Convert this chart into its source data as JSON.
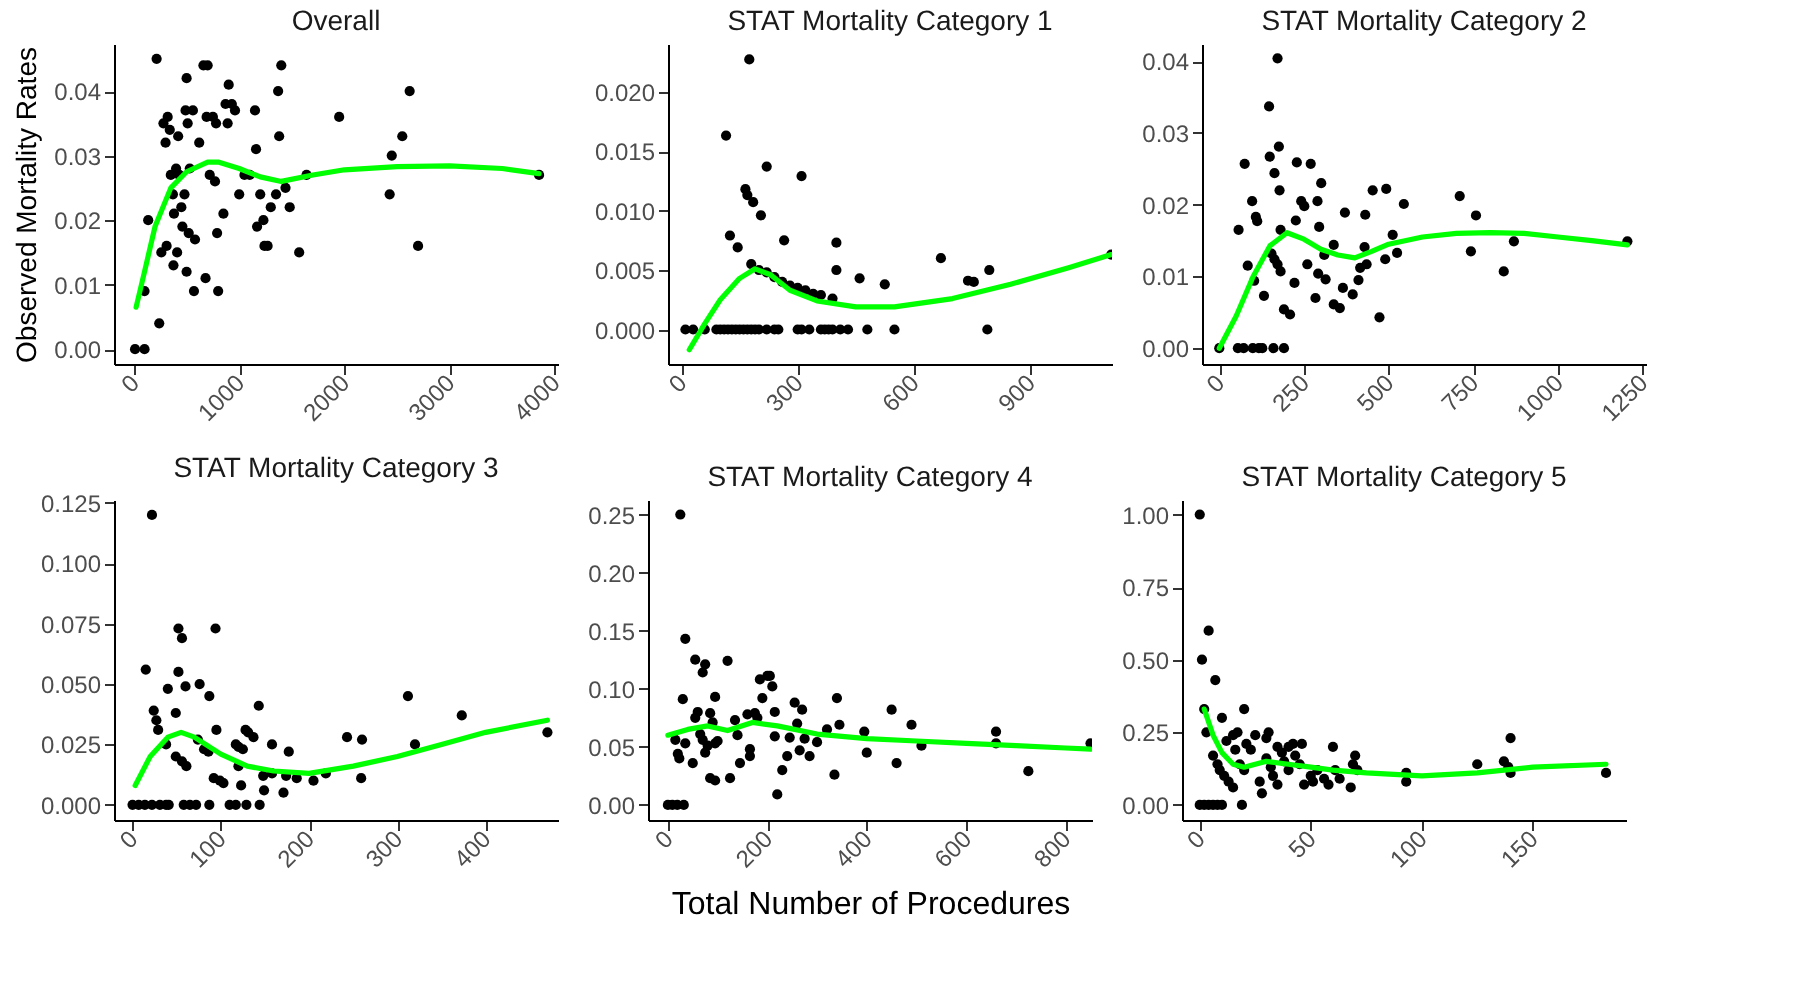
{
  "chart_data": [
    {
      "type": "scatter",
      "title": "Overall",
      "ylabel": "Observed Mortality Rates",
      "xlim": [
        -190,
        4030
      ],
      "ylim": [
        -0.0023,
        0.0473
      ],
      "xticks": [
        0,
        1000,
        2000,
        3000,
        4000
      ],
      "yticks": [
        {
          "value": 0,
          "label": "0.00"
        },
        0.01,
        0.02,
        0.03,
        0.04
      ],
      "grid": false,
      "series": [
        {
          "type": "scatter",
          "marker": "circle",
          "color": "#000000",
          "x": [
            10,
            100,
            100,
            135,
            215,
            240,
            260,
            280,
            300,
            310,
            320,
            340,
            350,
            370,
            375,
            380,
            400,
            410,
            420,
            430,
            450,
            460,
            480,
            490,
            500,
            500,
            510,
            520,
            530,
            560,
            570,
            580,
            620,
            660,
            680,
            690,
            700,
            720,
            750,
            770,
            780,
            790,
            800,
            850,
            870,
            890,
            900,
            930,
            960,
            1000,
            1050,
            1100,
            1150,
            1160,
            1170,
            1200,
            1230,
            1240,
            1270,
            1300,
            1350,
            1370,
            1380,
            1400,
            1440,
            1480,
            1570,
            1640,
            1950,
            2430,
            2450,
            2550,
            2620,
            2700,
            3850
          ],
          "values": [
            0,
            0,
            0.009,
            0.02,
            0.045,
            0.004,
            0.015,
            0.035,
            0.032,
            0.016,
            0.036,
            0.034,
            0.027,
            0.024,
            0.013,
            0.021,
            0.028,
            0.015,
            0.033,
            0.027,
            0.022,
            0.019,
            0.024,
            0.037,
            0.012,
            0.042,
            0.035,
            0.018,
            0.028,
            0.037,
            0.009,
            0.017,
            0.032,
            0.044,
            0.011,
            0.036,
            0.044,
            0.027,
            0.036,
            0.026,
            0.035,
            0.018,
            0.009,
            0.021,
            0.038,
            0.035,
            0.041,
            0.038,
            0.037,
            0.024,
            0.027,
            0.027,
            0.037,
            0.031,
            0.019,
            0.024,
            0.02,
            0.016,
            0.016,
            0.022,
            0.024,
            0.04,
            0.033,
            0.044,
            0.025,
            0.022,
            0.015,
            0.027,
            0.036,
            0.024,
            0.03,
            0.033,
            0.04,
            0.016,
            0.027
          ]
        },
        {
          "type": "line",
          "color": "#00ff00",
          "x": [
            20,
            100,
            200,
            350,
            500,
            700,
            800,
            1000,
            1200,
            1400,
            1700,
            2000,
            2500,
            3000,
            3500,
            3850
          ],
          "values": [
            0.0065,
            0.012,
            0.019,
            0.025,
            0.0275,
            0.029,
            0.029,
            0.028,
            0.0267,
            0.026,
            0.027,
            0.0278,
            0.0283,
            0.0284,
            0.028,
            0.0272
          ]
        }
      ]
    },
    {
      "type": "scatter",
      "title": "STAT Mortality Category 1",
      "xlim": [
        -35,
        1112
      ],
      "ylim": [
        -0.0029,
        0.024
      ],
      "xticks": [
        0,
        300,
        600,
        900
      ],
      "yticks": [
        {
          "value": 0,
          "label": "0.000"
        },
        0.005,
        {
          "value": 0.01,
          "label": "0.010"
        },
        0.015,
        {
          "value": 0.02,
          "label": "0.020"
        }
      ],
      "grid": false,
      "series": [
        {
          "type": "scatter",
          "marker": "circle",
          "color": "#000000",
          "x": [
            10,
            30,
            60,
            90,
            100,
            110,
            120,
            130,
            140,
            150,
            160,
            170,
            180,
            190,
            200,
            220,
            240,
            250,
            300,
            310,
            330,
            360,
            370,
            380,
            390,
            410,
            430,
            480,
            550,
            790,
            175,
            115,
            220,
            310,
            165,
            170,
            185,
            205,
            125,
            145,
            265,
            400,
            180,
            200,
            220,
            240,
            260,
            280,
            300,
            320,
            340,
            360,
            390,
            400,
            460,
            525,
            670,
            740,
            755,
            795,
            1110
          ],
          "values": [
            0,
            0,
            0,
            0,
            0,
            0,
            0,
            0,
            0,
            0,
            0,
            0,
            0,
            0,
            0,
            0,
            0,
            0,
            0,
            0,
            0,
            0,
            0,
            0,
            0,
            0,
            0,
            0,
            0,
            0,
            0.0227,
            0.0163,
            0.0137,
            0.0129,
            0.0118,
            0.0113,
            0.0107,
            0.0096,
            0.0079,
            0.0069,
            0.0075,
            0.0073,
            0.0055,
            0.005,
            0.0048,
            0.0044,
            0.004,
            0.0037,
            0.0035,
            0.0033,
            0.003,
            0.0029,
            0.0026,
            0.005,
            0.0043,
            0.0038,
            0.006,
            0.0041,
            0.004,
            0.005,
            0.0063
          ]
        },
        {
          "type": "line",
          "color": "#00ff00",
          "x": [
            20,
            60,
            100,
            150,
            190,
            230,
            280,
            350,
            450,
            550,
            700,
            850,
            1000,
            1110
          ],
          "values": [
            -0.0017,
            0.0005,
            0.0025,
            0.0043,
            0.0051,
            0.0046,
            0.0033,
            0.0024,
            0.0019,
            0.0019,
            0.0026,
            0.0038,
            0.0052,
            0.0063
          ]
        }
      ]
    },
    {
      "type": "scatter",
      "title": "STAT Mortality Category 2",
      "xlim": [
        -51,
        1260
      ],
      "ylim": [
        -0.0022,
        0.0424
      ],
      "xticks": [
        0,
        250,
        500,
        750,
        1000,
        1250
      ],
      "yticks": [
        {
          "value": 0,
          "label": "0.00"
        },
        0.01,
        0.02,
        0.03,
        0.04
      ],
      "grid": false,
      "series": [
        {
          "type": "scatter",
          "marker": "circle",
          "color": "#000000",
          "x": [
            0,
            55,
            72,
            99,
            117,
            127,
            160,
            191,
            172,
            147,
            149,
            176,
            163,
            75,
            229,
            270,
            57,
            97,
            108,
            112,
            84,
            103,
            132,
            178,
            181,
            154,
            163,
            172,
            181,
            191,
            209,
            226,
            222,
            242,
            251,
            260,
            290,
            301,
            295,
            292,
            284,
            314,
            310,
            338,
            338,
            356,
            371,
            365,
            394,
            411,
            416,
            431,
            429,
            435,
            453,
            473,
            493,
            490,
            512,
            525,
            545,
            710,
            743,
            758,
            840,
            870,
            1205
          ],
          "values": [
            0,
            0,
            0,
            0,
            0,
            0,
            0,
            0,
            0.0404,
            0.0337,
            0.0267,
            0.0281,
            0.0244,
            0.0257,
            0.0259,
            0.0257,
            0.0165,
            0.0205,
            0.0183,
            0.0177,
            0.0115,
            0.0094,
            0.0073,
            0.022,
            0.0165,
            0.0132,
            0.0124,
            0.0117,
            0.0107,
            0.0054,
            0.0047,
            0.0178,
            0.0091,
            0.0205,
            0.0198,
            0.0117,
            0.0205,
            0.023,
            0.0169,
            0.0104,
            0.007,
            0.0096,
            0.013,
            0.0144,
            0.0061,
            0.0056,
            0.0189,
            0.0084,
            0.0075,
            0.0095,
            0.0112,
            0.0186,
            0.0141,
            0.0117,
            0.022,
            0.0043,
            0.0222,
            0.0124,
            0.0158,
            0.0133,
            0.0201,
            0.0212,
            0.0135,
            0.0185,
            0.0107,
            0.0149,
            0.0149
          ]
        },
        {
          "type": "line",
          "color": "#00ff00",
          "x": [
            0,
            50,
            100,
            150,
            200,
            250,
            300,
            350,
            400,
            450,
            500,
            600,
            700,
            800,
            900,
            1000,
            1100,
            1205
          ],
          "values": [
            0,
            0.0045,
            0.01,
            0.0143,
            0.0161,
            0.0152,
            0.0138,
            0.013,
            0.0126,
            0.0135,
            0.0145,
            0.0155,
            0.016,
            0.0161,
            0.016,
            0.0155,
            0.015,
            0.0144
          ]
        }
      ]
    },
    {
      "type": "scatter",
      "title": "STAT Mortality Category 3",
      "xlim": [
        -21,
        482
      ],
      "ylim": [
        -0.0063,
        0.1262
      ],
      "xticks": [
        0,
        100,
        200,
        300,
        400
      ],
      "yticks": [
        {
          "value": 0,
          "label": "0.000"
        },
        0.025,
        {
          "value": 0.05,
          "label": "0.050"
        },
        0.075,
        {
          "value": 0.1,
          "label": "0.100"
        },
        0.125
      ],
      "grid": false,
      "series": [
        {
          "type": "scatter",
          "marker": "circle",
          "color": "#000000",
          "x": [
            0,
            7,
            14,
            22,
            31,
            38,
            41,
            58,
            65,
            72,
            87,
            110,
            117,
            129,
            144,
            22,
            15,
            24,
            27,
            29,
            38,
            40,
            49,
            52,
            52,
            56,
            60,
            49,
            56,
            61,
            76,
            87,
            74,
            81,
            86,
            94,
            95,
            92,
            99,
            103,
            117,
            120,
            125,
            123,
            128,
            131,
            137,
            143,
            120,
            148,
            149,
            158,
            158,
            171,
            174,
            177,
            186,
            205,
            219,
            243,
            260,
            259,
            312,
            320,
            373,
            470
          ],
          "values": [
            0,
            0,
            0,
            0,
            0,
            0,
            0,
            0,
            0,
            0,
            0,
            0,
            0,
            0,
            0,
            0.12,
            0.056,
            0.039,
            0.035,
            0.031,
            0.025,
            0.048,
            0.038,
            0.055,
            0.073,
            0.069,
            0.049,
            0.02,
            0.018,
            0.016,
            0.05,
            0.045,
            0.027,
            0.023,
            0.022,
            0.073,
            0.031,
            0.011,
            0.01,
            0.009,
            0.025,
            0.024,
            0.023,
            0.008,
            0.031,
            0.03,
            0.028,
            0.041,
            0.016,
            0.012,
            0.006,
            0.025,
            0.013,
            0.005,
            0.012,
            0.022,
            0.011,
            0.01,
            0.013,
            0.028,
            0.027,
            0.011,
            0.045,
            0.025,
            0.037,
            0.03
          ]
        },
        {
          "type": "line",
          "color": "#00ff00",
          "x": [
            3,
            20,
            40,
            55,
            70,
            100,
            130,
            160,
            200,
            250,
            300,
            350,
            400,
            470
          ],
          "values": [
            0.008,
            0.02,
            0.028,
            0.03,
            0.028,
            0.021,
            0.016,
            0.014,
            0.013,
            0.016,
            0.02,
            0.025,
            0.03,
            0.035
          ]
        }
      ]
    },
    {
      "type": "scatter",
      "title": "STAT Mortality Category 4",
      "xlabel": "Total Number of Procedures",
      "xlim": [
        -40,
        853
      ],
      "ylim": [
        -0.013,
        0.2625
      ],
      "xticks": [
        0,
        200,
        400,
        600,
        800
      ],
      "yticks": [
        {
          "value": 0,
          "label": "0.00"
        },
        0.05,
        {
          "value": 0.1,
          "label": "0.10"
        },
        0.15,
        {
          "value": 0.2,
          "label": "0.20"
        },
        0.25
      ],
      "grid": false,
      "series": [
        {
          "type": "scatter",
          "marker": "circle",
          "color": "#000000",
          "x": [
            0,
            9,
            19,
            32,
            25,
            35,
            30,
            55,
            70,
            75,
            120,
            95,
            15,
            20,
            23,
            35,
            50,
            55,
            60,
            65,
            70,
            75,
            80,
            85,
            90,
            95,
            100,
            85,
            95,
            125,
            135,
            140,
            145,
            160,
            165,
            165,
            175,
            180,
            185,
            190,
            200,
            205,
            210,
            215,
            215,
            220,
            230,
            240,
            245,
            255,
            260,
            265,
            270,
            275,
            285,
            300,
            320,
            335,
            340,
            345,
            395,
            400,
            450,
            460,
            490,
            510,
            660,
            660,
            725,
            850
          ],
          "values": [
            0,
            0,
            0,
            0,
            0.25,
            0.143,
            0.091,
            0.125,
            0.114,
            0.121,
            0.124,
            0.093,
            0.056,
            0.044,
            0.04,
            0.053,
            0.036,
            0.075,
            0.08,
            0.061,
            0.056,
            0.045,
            0.051,
            0.079,
            0.071,
            0.053,
            0.055,
            0.023,
            0.021,
            0.023,
            0.073,
            0.06,
            0.036,
            0.078,
            0.048,
            0.042,
            0.079,
            0.075,
            0.108,
            0.092,
            0.111,
            0.111,
            0.102,
            0.08,
            0.059,
            0.009,
            0.03,
            0.042,
            0.058,
            0.088,
            0.07,
            0.047,
            0.082,
            0.057,
            0.042,
            0.054,
            0.065,
            0.026,
            0.092,
            0.069,
            0.063,
            0.045,
            0.082,
            0.036,
            0.069,
            0.051,
            0.063,
            0.053,
            0.029,
            0.053
          ]
        },
        {
          "type": "line",
          "color": "#00ff00",
          "x": [
            0,
            40,
            80,
            120,
            170,
            220,
            300,
            400,
            500,
            600,
            700,
            800,
            850
          ],
          "values": [
            0.06,
            0.065,
            0.068,
            0.064,
            0.071,
            0.068,
            0.061,
            0.057,
            0.055,
            0.053,
            0.051,
            0.049,
            0.048
          ]
        }
      ]
    },
    {
      "type": "scatter",
      "title": "STAT Mortality Category 5",
      "xlim": [
        -8,
        192
      ],
      "ylim": [
        -0.052,
        1.05
      ],
      "xticks": [
        0,
        50,
        100,
        150
      ],
      "yticks": [
        {
          "value": 0,
          "label": "0.00"
        },
        0.25,
        {
          "value": 0.5,
          "label": "0.50"
        },
        0.75,
        {
          "value": 1,
          "label": "1.00"
        }
      ],
      "grid": false,
      "series": [
        {
          "type": "scatter",
          "marker": "circle",
          "color": "#000000",
          "x": [
            0,
            1,
            4,
            7,
            2,
            3,
            10,
            20,
            0,
            2,
            4,
            6,
            8,
            10,
            19,
            6,
            8,
            9,
            11,
            13,
            15,
            12,
            15,
            17,
            16,
            18,
            20,
            21,
            23,
            25,
            27,
            28,
            30,
            31,
            30,
            32,
            33,
            35,
            35,
            37,
            38,
            40,
            40,
            42,
            43,
            45,
            46,
            47,
            50,
            51,
            53,
            56,
            58,
            60,
            61,
            63,
            68,
            69,
            70,
            71,
            93,
            93,
            125,
            137,
            139,
            140,
            140,
            183
          ],
          "values": [
            1.0,
            0.5,
            0.6,
            0.43,
            0.33,
            0.25,
            0.3,
            0.33,
            0,
            0,
            0,
            0,
            0,
            0,
            0,
            0.17,
            0.14,
            0.12,
            0.1,
            0.08,
            0.06,
            0.22,
            0.24,
            0.25,
            0.19,
            0.14,
            0.12,
            0.21,
            0.19,
            0.24,
            0.08,
            0.04,
            0.23,
            0.25,
            0.16,
            0.13,
            0.1,
            0.07,
            0.2,
            0.18,
            0.15,
            0.2,
            0.12,
            0.21,
            0.17,
            0.14,
            0.21,
            0.07,
            0.1,
            0.08,
            0.12,
            0.09,
            0.07,
            0.2,
            0.12,
            0.09,
            0.06,
            0.14,
            0.17,
            0.12,
            0.11,
            0.08,
            0.14,
            0.15,
            0.13,
            0.23,
            0.11,
            0.11
          ]
        },
        {
          "type": "line",
          "color": "#00ff00",
          "x": [
            2,
            6,
            10,
            15,
            20,
            25,
            30,
            40,
            50,
            60,
            75,
            100,
            125,
            150,
            183
          ],
          "values": [
            0.33,
            0.24,
            0.18,
            0.14,
            0.13,
            0.14,
            0.15,
            0.14,
            0.13,
            0.12,
            0.11,
            0.1,
            0.11,
            0.13,
            0.14
          ]
        }
      ]
    }
  ]
}
